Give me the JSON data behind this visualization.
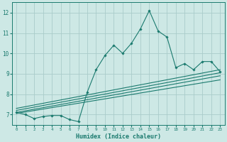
{
  "xlabel": "Humidex (Indice chaleur)",
  "ylabel": "",
  "bg_color": "#cde8e5",
  "grid_color": "#aaccca",
  "line_color": "#1a7a6e",
  "xlim": [
    -0.5,
    23.5
  ],
  "ylim": [
    6.5,
    12.5
  ],
  "x_ticks": [
    0,
    1,
    2,
    3,
    4,
    5,
    6,
    7,
    8,
    9,
    10,
    11,
    12,
    13,
    14,
    15,
    16,
    17,
    18,
    19,
    20,
    21,
    22,
    23
  ],
  "y_ticks": [
    7,
    8,
    9,
    10,
    11,
    12
  ],
  "main_x": [
    0,
    1,
    2,
    3,
    4,
    5,
    6,
    7,
    8,
    9,
    10,
    11,
    12,
    13,
    14,
    15,
    16,
    17,
    18,
    19,
    20,
    21,
    22,
    23
  ],
  "main_y": [
    7.1,
    7.0,
    6.8,
    6.9,
    6.95,
    6.95,
    6.75,
    6.65,
    8.1,
    9.2,
    9.9,
    10.4,
    10.0,
    10.5,
    11.2,
    12.1,
    11.1,
    10.8,
    9.3,
    9.5,
    9.2,
    9.6,
    9.6,
    9.1
  ],
  "line1_x": [
    0,
    23
  ],
  "line1_y": [
    7.05,
    8.7
  ],
  "line2_x": [
    0,
    23
  ],
  "line2_y": [
    7.1,
    8.9
  ],
  "line3_x": [
    0,
    23
  ],
  "line3_y": [
    7.2,
    9.05
  ],
  "line4_x": [
    0,
    23
  ],
  "line4_y": [
    7.3,
    9.2
  ]
}
